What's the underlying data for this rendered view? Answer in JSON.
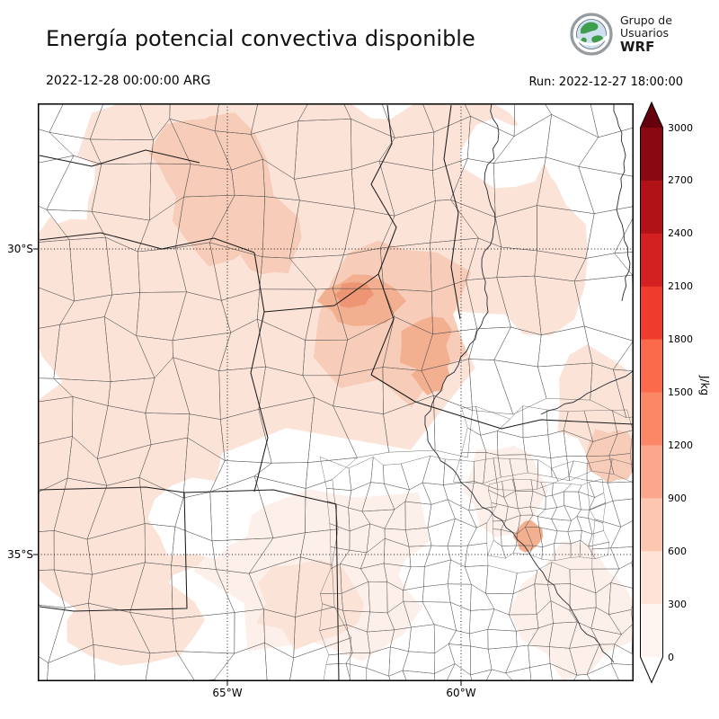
{
  "header": {
    "title": "Energía potencial convectiva disponible",
    "valid_time": "2022-12-28 00:00:00 ARG",
    "run_label": "Run: 2022-12-27 18:00:00",
    "logo": {
      "icon": "globe-icon",
      "line1": "Grupo de",
      "line2": "Usuarios",
      "line3": "WRF"
    }
  },
  "map": {
    "lat_ticks": [
      {
        "label": "30°S"
      },
      {
        "label": "35°S"
      }
    ],
    "lon_ticks": [
      {
        "label": "65°W"
      },
      {
        "label": "60°W"
      }
    ]
  },
  "colorbar": {
    "unit": "J/kg",
    "tick_labels_top_to_bottom": [
      "3000",
      "2700",
      "2400",
      "2100",
      "1800",
      "1500",
      "1200",
      "900",
      "600",
      "300",
      "0"
    ],
    "segment_colors_top_to_bottom": [
      "#8a0812",
      "#b11218",
      "#d32020",
      "#ef3b2c",
      "#fb6a4a",
      "#fc8767",
      "#fca78b",
      "#fdc6b0",
      "#fee3d6",
      "#fff5f0"
    ],
    "over_arrow_color": "#67000d",
    "under_arrow_color": "#ffffff"
  },
  "chart_data": {
    "type": "heatmap",
    "title": "Energía potencial convectiva disponible",
    "units": "J/kg",
    "colorbar_ticks": [
      0,
      300,
      600,
      900,
      1200,
      1500,
      1800,
      2100,
      2400,
      2700,
      3000
    ],
    "colorbar_range": [
      0,
      3000
    ],
    "lat_tick_labels": [
      "30°S",
      "35°S"
    ],
    "lon_tick_labels": [
      "65°W",
      "60°W"
    ],
    "valid_time": "2022-12-28 00:00:00 ARG",
    "run_time": "Run: 2022-12-27 18:00:00",
    "legend_position": "right"
  }
}
